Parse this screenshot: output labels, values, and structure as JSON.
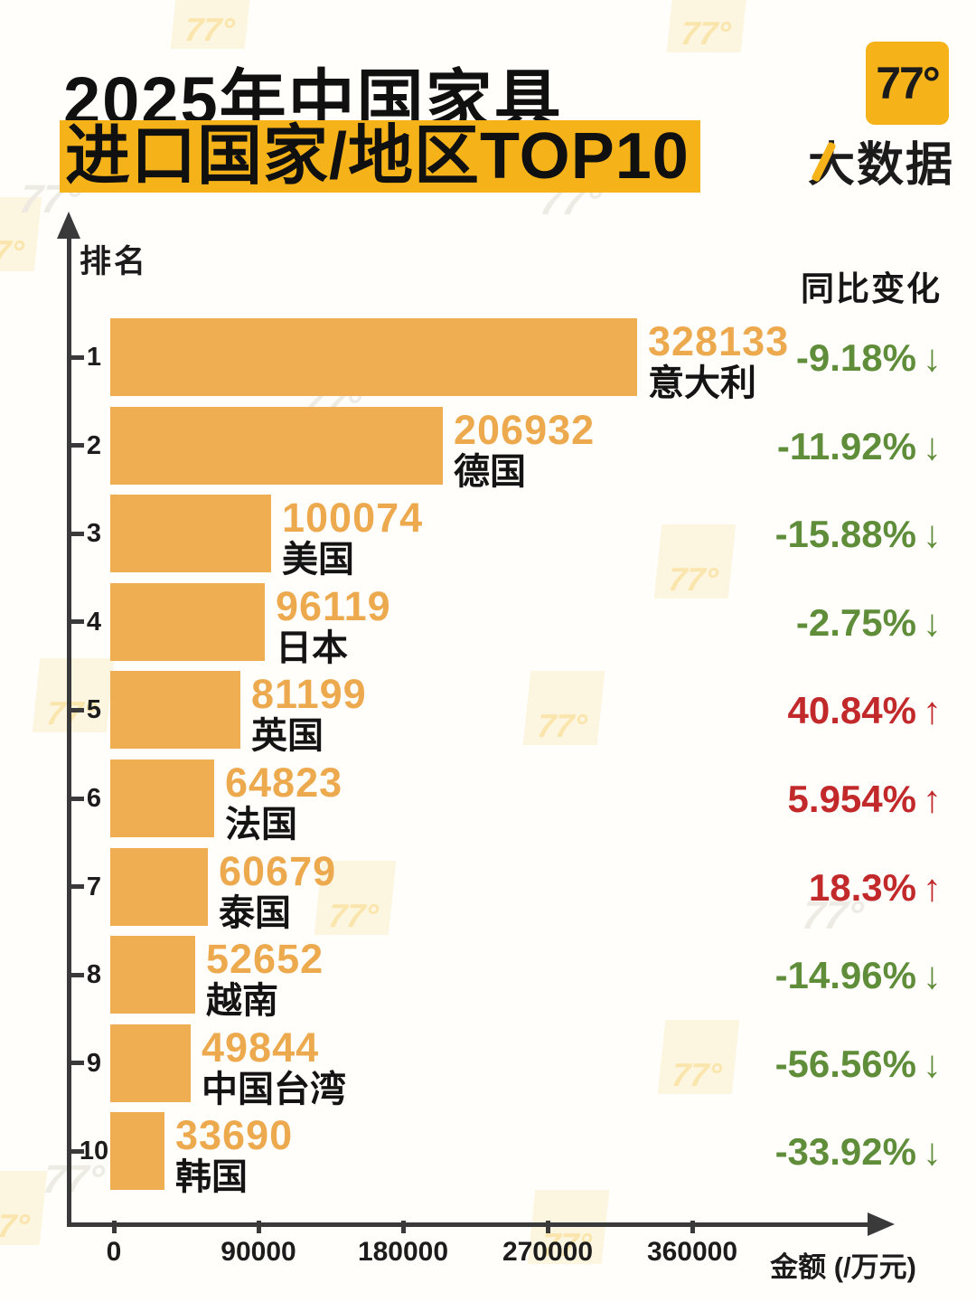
{
  "title": {
    "line1": "2025年中国家具",
    "line2": "进口国家/地区TOP10"
  },
  "logo": {
    "badge": "77°",
    "text": "大数据"
  },
  "watermark_text": "77°",
  "chart_data": {
    "type": "bar",
    "orientation": "horizontal",
    "title": "2025年中国家具进口国家/地区TOP10",
    "ylabel": "排名",
    "xlabel": "金额 (/万元)",
    "change_column_header": "同比变化",
    "x_ticks": [
      "0",
      "90000",
      "180000",
      "270000",
      "360000"
    ],
    "x_tick_values": [
      0,
      90000,
      180000,
      270000,
      360000
    ],
    "xlim": [
      0,
      420000
    ],
    "grid": false,
    "legend": "none",
    "rows": [
      {
        "rank": 1,
        "country": "意大利",
        "value": 328133,
        "change": "-9.18%",
        "direction": "down"
      },
      {
        "rank": 2,
        "country": "德国",
        "value": 206932,
        "change": "-11.92%",
        "direction": "down"
      },
      {
        "rank": 3,
        "country": "美国",
        "value": 100074,
        "change": "-15.88%",
        "direction": "down"
      },
      {
        "rank": 4,
        "country": "日本",
        "value": 96119,
        "change": "-2.75%",
        "direction": "down"
      },
      {
        "rank": 5,
        "country": "英国",
        "value": 81199,
        "change": "40.84%",
        "direction": "up"
      },
      {
        "rank": 6,
        "country": "法国",
        "value": 64823,
        "change": "5.954%",
        "direction": "up"
      },
      {
        "rank": 7,
        "country": "泰国",
        "value": 60679,
        "change": "18.3%",
        "direction": "up"
      },
      {
        "rank": 8,
        "country": "越南",
        "value": 52652,
        "change": "-14.96%",
        "direction": "down"
      },
      {
        "rank": 9,
        "country": "中国台湾",
        "value": 49844,
        "change": "-56.56%",
        "direction": "down"
      },
      {
        "rank": 10,
        "country": "韩国",
        "value": 33690,
        "change": "-33.92%",
        "direction": "down"
      }
    ],
    "arrows": {
      "down": "↓",
      "up": "↑"
    },
    "colors": {
      "bar": "#EFAE52",
      "value_text": "#EDA94E",
      "country_text": "#141414",
      "down": "#5F8D39",
      "up": "#C2292B",
      "accent_yellow": "#F6B319",
      "axis": "#3A3A3A"
    }
  }
}
